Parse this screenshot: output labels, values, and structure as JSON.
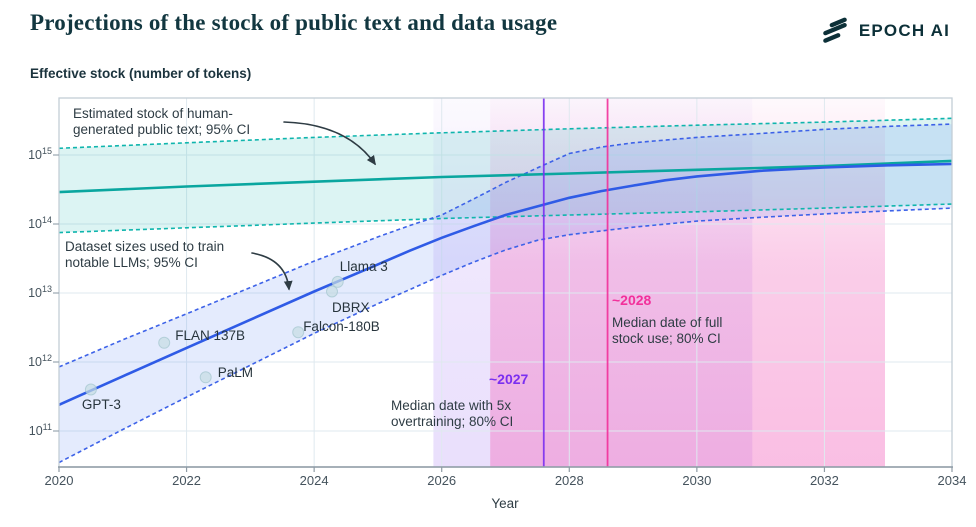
{
  "header": {
    "title": "Projections of the stock of public text and data usage",
    "brand": "EPOCH AI"
  },
  "chart_data": {
    "type": "line",
    "title": "Projections of the stock of public text and data usage",
    "ylabel": "Effective stock (number of tokens)",
    "xlabel": "Year",
    "x_axis": {
      "min": 2020,
      "max": 2034,
      "ticks": [
        2020,
        2022,
        2024,
        2026,
        2028,
        2030,
        2032,
        2034
      ]
    },
    "y_axis": {
      "scale": "log",
      "tick_exponents": [
        15,
        14,
        13,
        12,
        11
      ],
      "tick_labels": [
        "10^15",
        "10^14",
        "10^13",
        "10^12",
        "10^11"
      ]
    },
    "grid": true,
    "colors": {
      "teal_line": "#0aa69f",
      "teal_fill": "rgba(45,190,182,0.17)",
      "blue_line": "#2f5be6",
      "blue_fill": "rgba(90,130,240,0.16)",
      "purple": "#7b2ff0",
      "pink": "#f2309b",
      "point_fill": "#c6dde3",
      "text_dark": "#2e3c44"
    },
    "series": [
      {
        "name": "Estimated stock of human-generated public text (median)",
        "style": "solid",
        "color": "#0aa69f",
        "points": [
          [
            2020,
            290000000000000.0
          ],
          [
            2022,
            350000000000000.0
          ],
          [
            2024,
            410000000000000.0
          ],
          [
            2026,
            480000000000000.0
          ],
          [
            2028,
            540000000000000.0
          ],
          [
            2030,
            610000000000000.0
          ],
          [
            2032,
            690000000000000.0
          ],
          [
            2034,
            820000000000000.0
          ]
        ]
      },
      {
        "name": "Human text stock 95% CI upper",
        "style": "dashed",
        "color": "#0fb5ad",
        "points": [
          [
            2020,
            1250000000000000.0
          ],
          [
            2022,
            1500000000000000.0
          ],
          [
            2024,
            1800000000000000.0
          ],
          [
            2026,
            2100000000000000.0
          ],
          [
            2028,
            2400000000000000.0
          ],
          [
            2030,
            2700000000000000.0
          ],
          [
            2032,
            3000000000000000.0
          ],
          [
            2034,
            3400000000000000.0
          ]
        ]
      },
      {
        "name": "Human text stock 95% CI lower",
        "style": "dashed",
        "color": "#0fb5ad",
        "points": [
          [
            2020,
            75000000000000.0
          ],
          [
            2022,
            88000000000000.0
          ],
          [
            2024,
            103000000000000.0
          ],
          [
            2026,
            120000000000000.0
          ],
          [
            2028,
            135000000000000.0
          ],
          [
            2030,
            150000000000000.0
          ],
          [
            2032,
            170000000000000.0
          ],
          [
            2034,
            195000000000000.0
          ]
        ]
      },
      {
        "name": "Dataset sizes used to train notable LLMs (median projection)",
        "style": "solid",
        "color": "#2f5be6",
        "points": [
          [
            2020,
            240000000000.0
          ],
          [
            2021,
            620000000000.0
          ],
          [
            2022,
            1600000000000.0
          ],
          [
            2023,
            4100000000000.0
          ],
          [
            2024,
            10500000000000.0
          ],
          [
            2025,
            26000000000000.0
          ],
          [
            2025.5,
            41000000000000.0
          ],
          [
            2026,
            63000000000000.0
          ],
          [
            2026.5,
            93000000000000.0
          ],
          [
            2027,
            135000000000000.0
          ],
          [
            2027.5,
            180000000000000.0
          ],
          [
            2028,
            240000000000000.0
          ],
          [
            2028.5,
            300000000000000.0
          ],
          [
            2029,
            360000000000000.0
          ],
          [
            2029.5,
            430000000000000.0
          ],
          [
            2030,
            490000000000000.0
          ],
          [
            2031,
            590000000000000.0
          ],
          [
            2032,
            660000000000000.0
          ],
          [
            2033,
            710000000000000.0
          ],
          [
            2034,
            740000000000000.0
          ]
        ]
      },
      {
        "name": "Dataset sizes 95% CI upper",
        "style": "dashed",
        "color": "#3d62e8",
        "points": [
          [
            2020,
            850000000000.0
          ],
          [
            2021,
            2100000000000.0
          ],
          [
            2022,
            5000000000000.0
          ],
          [
            2023,
            12000000000000.0
          ],
          [
            2024,
            29000000000000.0
          ],
          [
            2025,
            65000000000000.0
          ],
          [
            2025.5,
            95000000000000.0
          ],
          [
            2026,
            135000000000000.0
          ],
          [
            2026.5,
            230000000000000.0
          ],
          [
            2027,
            400000000000000.0
          ],
          [
            2027.5,
            650000000000000.0
          ],
          [
            2028,
            1050000000000000.0
          ],
          [
            2028.5,
            1300000000000000.0
          ],
          [
            2029,
            1500000000000000.0
          ],
          [
            2030,
            1800000000000000.0
          ],
          [
            2031,
            2050000000000000.0
          ],
          [
            2032,
            2350000000000000.0
          ],
          [
            2033,
            2600000000000000.0
          ],
          [
            2034,
            2800000000000000.0
          ]
        ]
      },
      {
        "name": "Dataset sizes 95% CI lower",
        "style": "dashed",
        "color": "#3d62e8",
        "points": [
          [
            2020,
            35000000000.0
          ],
          [
            2021,
            105000000000.0
          ],
          [
            2022,
            310000000000.0
          ],
          [
            2023,
            900000000000.0
          ],
          [
            2024,
            2600000000000.0
          ],
          [
            2025,
            7000000000000.0
          ],
          [
            2026,
            18000000000000.0
          ],
          [
            2026.5,
            28000000000000.0
          ],
          [
            2027,
            42000000000000.0
          ],
          [
            2027.5,
            58000000000000.0
          ],
          [
            2028,
            70000000000000.0
          ],
          [
            2029,
            90000000000000.0
          ],
          [
            2030,
            110000000000000.0
          ],
          [
            2031,
            125000000000000.0
          ],
          [
            2032,
            140000000000000.0
          ],
          [
            2033,
            155000000000000.0
          ],
          [
            2034,
            170000000000000.0
          ]
        ]
      }
    ],
    "scatter": [
      {
        "label": "GPT-3",
        "year": 2020.5,
        "tokens": 400000000000.0
      },
      {
        "label": "FLAN 137B",
        "year": 2021.65,
        "tokens": 1900000000000.0
      },
      {
        "label": "PaLM",
        "year": 2022.3,
        "tokens": 600000000000.0
      },
      {
        "label": "Falcon-180B",
        "year": 2023.75,
        "tokens": 2700000000000.0
      },
      {
        "label": "DBRX",
        "year": 2024.28,
        "tokens": 10500000000000.0
      },
      {
        "label": "Llama 3",
        "year": 2024.37,
        "tokens": 14500000000000.0
      }
    ],
    "events": [
      {
        "label": "~2027",
        "desc": "Median date with 5x\novertraining; 80% CI",
        "median_year": 2027.6,
        "ci": [
          2025.87,
          2030.87
        ],
        "color": "#7b2ff0"
      },
      {
        "label": "~2028",
        "desc": "Median date of full\nstock use; 80% CI",
        "median_year": 2028.6,
        "ci": [
          2026.76,
          2032.95
        ],
        "color": "#f2309b"
      }
    ],
    "annotations": {
      "human_stock": {
        "text": "Estimated stock of human-\ngenerated public text; 95% CI"
      },
      "datasets": {
        "text": "Dataset sizes used to train\nnotable LLMs; 95% CI"
      }
    }
  }
}
